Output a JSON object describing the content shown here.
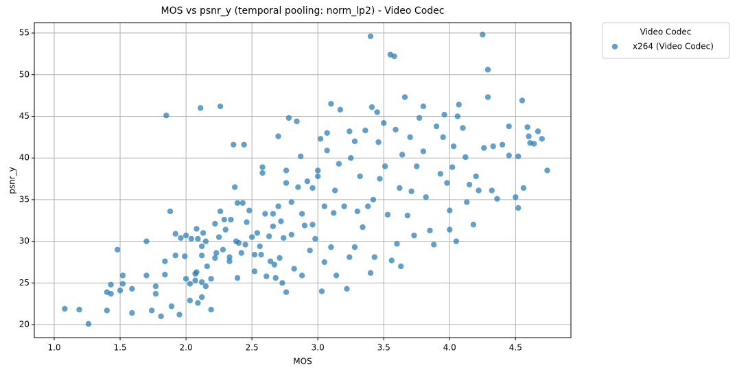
{
  "chart_data": {
    "type": "scatter",
    "title": "MOS vs psnr_y (temporal pooling: norm_lp2) - Video Codec",
    "x_label": "MOS",
    "y_label": "psnr_y",
    "legend_title": "Video Codec",
    "legend_position": "outside-upper-right",
    "grid": true,
    "xlim": [
      0.849,
      4.92
    ],
    "ylim": [
      18.44,
      56.24
    ],
    "xticks": [
      {
        "value": 1,
        "label": "1.0"
      },
      1.5,
      {
        "value": 2,
        "label": "2.0"
      },
      2.5,
      {
        "value": 3,
        "label": "3.0"
      },
      3.5,
      {
        "value": 4,
        "label": "4.0"
      },
      4.5
    ],
    "yticks": [
      20,
      25,
      30,
      35,
      40,
      45,
      50,
      55
    ],
    "series": [
      {
        "name": "x264 (Video Codec)",
        "color": "#1f77b4",
        "x": [
          1.08,
          1.19,
          1.26,
          1.4,
          1.4,
          1.43,
          1.43,
          1.48,
          1.5,
          1.52,
          1.52,
          1.59,
          1.59,
          1.7,
          1.7,
          1.74,
          1.77,
          1.77,
          1.81,
          1.84,
          1.84,
          1.85,
          1.88,
          1.89,
          1.92,
          1.92,
          1.95,
          1.96,
          1.99,
          2.0,
          2.0,
          2.03,
          2.03,
          2.04,
          2.07,
          2.07,
          2.08,
          2.08,
          2.09,
          2.09,
          2.11,
          2.12,
          2.12,
          2.12,
          2.12,
          2.13,
          2.15,
          2.15,
          2.16,
          2.19,
          2.19,
          2.22,
          2.22,
          2.23,
          2.25,
          2.26,
          2.26,
          2.28,
          2.29,
          2.3,
          2.33,
          2.33,
          2.34,
          2.36,
          2.37,
          2.38,
          2.39,
          2.39,
          2.4,
          2.42,
          2.43,
          2.44,
          2.45,
          2.46,
          2.48,
          2.5,
          2.52,
          2.52,
          2.54,
          2.56,
          2.57,
          2.58,
          2.58,
          2.6,
          2.61,
          2.63,
          2.64,
          2.66,
          2.66,
          2.67,
          2.68,
          2.7,
          2.7,
          2.71,
          2.72,
          2.73,
          2.74,
          2.76,
          2.76,
          2.76,
          2.78,
          2.8,
          2.8,
          2.82,
          2.84,
          2.85,
          2.87,
          2.88,
          2.88,
          2.9,
          2.92,
          2.94,
          2.96,
          2.96,
          2.98,
          3.0,
          3.0,
          3.02,
          3.03,
          3.05,
          3.05,
          3.07,
          3.07,
          3.1,
          3.1,
          3.12,
          3.13,
          3.14,
          3.16,
          3.17,
          3.2,
          3.22,
          3.24,
          3.24,
          3.25,
          3.28,
          3.28,
          3.3,
          3.32,
          3.34,
          3.36,
          3.38,
          3.4,
          3.4,
          3.41,
          3.42,
          3.43,
          3.45,
          3.46,
          3.47,
          3.5,
          3.51,
          3.53,
          3.55,
          3.56,
          3.58,
          3.59,
          3.6,
          3.62,
          3.63,
          3.64,
          3.66,
          3.68,
          3.7,
          3.71,
          3.73,
          3.75,
          3.77,
          3.8,
          3.8,
          3.82,
          3.85,
          3.88,
          3.9,
          3.93,
          3.95,
          3.96,
          3.98,
          4.0,
          4.0,
          4.02,
          4.03,
          4.05,
          4.06,
          4.07,
          4.1,
          4.12,
          4.13,
          4.15,
          4.18,
          4.2,
          4.22,
          4.25,
          4.26,
          4.29,
          4.29,
          4.32,
          4.33,
          4.36,
          4.4,
          4.45,
          4.45,
          4.5,
          4.52,
          4.52,
          4.55,
          4.56,
          4.59,
          4.6,
          4.61,
          4.64,
          4.67,
          4.7,
          4.74
        ],
        "values": [
          21.9,
          21.8,
          20.1,
          21.7,
          23.9,
          23.7,
          24.8,
          29.0,
          24.1,
          24.9,
          25.9,
          24.3,
          21.4,
          30.0,
          25.9,
          21.7,
          24.6,
          23.7,
          21.0,
          27.6,
          26.0,
          45.1,
          33.6,
          22.2,
          28.3,
          30.9,
          21.2,
          30.4,
          28.2,
          25.5,
          30.7,
          22.9,
          24.9,
          30.3,
          25.3,
          26.1,
          26.3,
          31.5,
          22.6,
          30.3,
          46.0,
          23.3,
          25.1,
          28.3,
          29.4,
          31.0,
          30.0,
          24.6,
          27.0,
          25.5,
          21.8,
          28.0,
          32.1,
          28.6,
          30.5,
          46.2,
          33.6,
          29.0,
          32.6,
          31.4,
          27.6,
          28.1,
          32.6,
          41.6,
          36.5,
          30.0,
          25.6,
          34.6,
          29.8,
          28.6,
          34.6,
          41.6,
          29.6,
          32.3,
          33.7,
          30.5,
          26.4,
          28.4,
          31.0,
          29.4,
          28.4,
          38.9,
          38.2,
          33.3,
          25.8,
          30.6,
          27.6,
          31.8,
          33.3,
          27.2,
          25.6,
          34.2,
          42.6,
          28.0,
          32.4,
          25.0,
          30.4,
          37.0,
          38.5,
          23.9,
          44.8,
          30.8,
          34.7,
          26.7,
          44.4,
          36.5,
          40.2,
          33.3,
          25.9,
          31.9,
          37.2,
          28.9,
          36.4,
          32.0,
          30.3,
          38.5,
          37.8,
          42.3,
          24.0,
          34.2,
          27.5,
          43.0,
          40.9,
          46.5,
          29.3,
          33.4,
          36.1,
          25.9,
          39.3,
          45.8,
          34.2,
          24.3,
          43.2,
          28.1,
          40.0,
          29.3,
          42.0,
          33.6,
          37.8,
          31.7,
          43.3,
          34.2,
          54.6,
          26.2,
          46.1,
          35.0,
          28.1,
          45.5,
          41.9,
          37.5,
          44.2,
          39.0,
          33.2,
          52.4,
          27.7,
          52.2,
          43.4,
          29.7,
          36.4,
          27.0,
          40.4,
          47.3,
          33.1,
          42.5,
          36.0,
          30.7,
          39.0,
          44.8,
          46.2,
          40.8,
          35.3,
          31.3,
          29.6,
          43.8,
          38.1,
          42.5,
          45.2,
          37.0,
          31.4,
          33.7,
          38.9,
          41.4,
          30.0,
          45.0,
          46.4,
          43.6,
          40.1,
          34.7,
          36.8,
          32.0,
          37.8,
          36.1,
          54.8,
          41.2,
          50.6,
          47.3,
          36.1,
          41.4,
          35.1,
          41.6,
          43.8,
          40.3,
          35.3,
          34.0,
          40.2,
          46.9,
          36.4,
          43.7,
          42.6,
          41.8,
          41.7,
          43.2,
          42.3,
          38.5
        ]
      }
    ]
  }
}
